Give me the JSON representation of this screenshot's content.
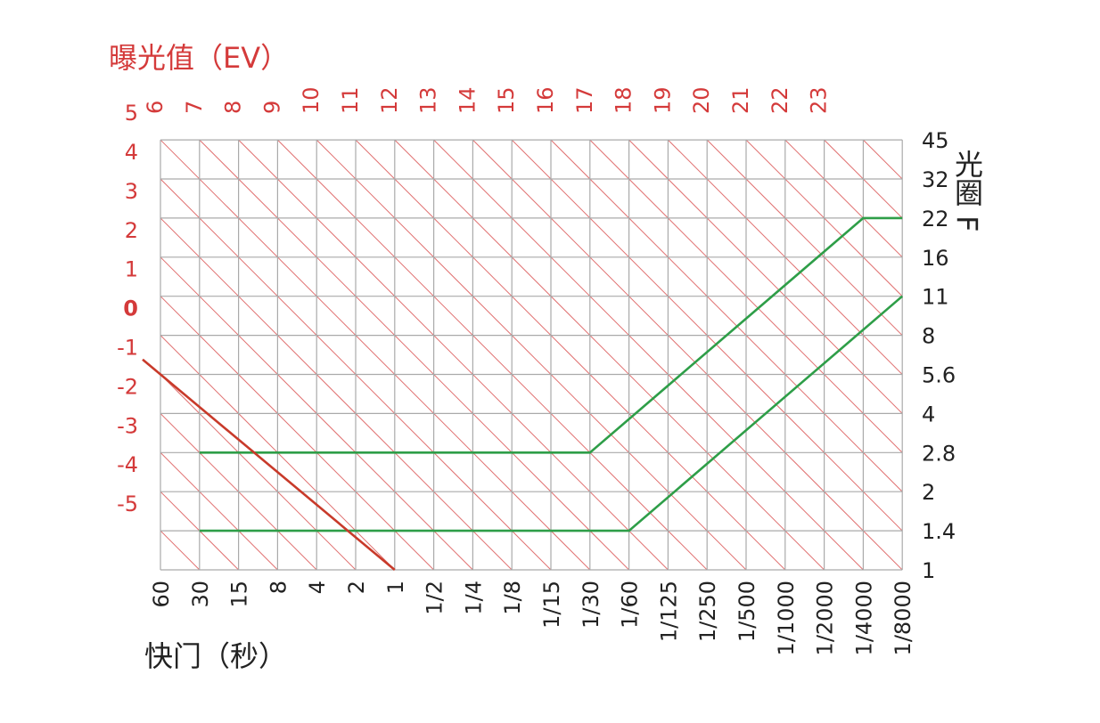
{
  "chart_data": {
    "type": "line",
    "title": "",
    "ev_axis_label": "曝光值（EV）",
    "xlabel": "快门（秒）",
    "ylabel": "光圈 F",
    "shutter_ticks": [
      "60",
      "30",
      "15",
      "8",
      "4",
      "2",
      "1",
      "1/2",
      "1/4",
      "1/8",
      "1/15",
      "1/30",
      "1/60",
      "1/125",
      "1/250",
      "1/500",
      "1/1000",
      "1/2000",
      "1/4000",
      "1/8000"
    ],
    "aperture_ticks": [
      "1",
      "1.4",
      "2",
      "2.8",
      "4",
      "5.6",
      "8",
      "11",
      "16",
      "22",
      "32",
      "45"
    ],
    "ev_left_ticks": [
      "5",
      "4",
      "3",
      "2",
      "1",
      "0",
      "-1",
      "-2",
      "-3",
      "-4",
      "-5"
    ],
    "ev_top_ticks": [
      "6",
      "7",
      "8",
      "9",
      "10",
      "11",
      "12",
      "13",
      "14",
      "15",
      "16",
      "17",
      "18",
      "19",
      "20",
      "21",
      "22",
      "23"
    ],
    "ev_zero_label": "0",
    "series": [
      {
        "values": [
          {
            "shutter": "30",
            "aperture": "2.8"
          },
          {
            "shutter": "1/30",
            "aperture": "2.8"
          },
          {
            "shutter": "1/4000",
            "aperture": "22"
          },
          {
            "shutter": "1/8000",
            "aperture": "22"
          }
        ]
      },
      {
        "values": [
          {
            "shutter": "30",
            "aperture": "1.4"
          },
          {
            "shutter": "1/60",
            "aperture": "1.4"
          },
          {
            "shutter": "1/8000",
            "aperture": "11"
          }
        ]
      },
      {
        "values": [
          {
            "shutter": "1",
            "aperture": "1"
          },
          {
            "shutter": "60",
            "aperture": "5.6"
          }
        ],
        "ev": 0
      }
    ],
    "colors": {
      "grid": "#aaaaaa",
      "diagonal": "#e07070",
      "ev_text": "#d43a3a",
      "program_line": "#2e9e48",
      "ev0_line": "#c83a2a",
      "axis_text": "#222222"
    }
  }
}
